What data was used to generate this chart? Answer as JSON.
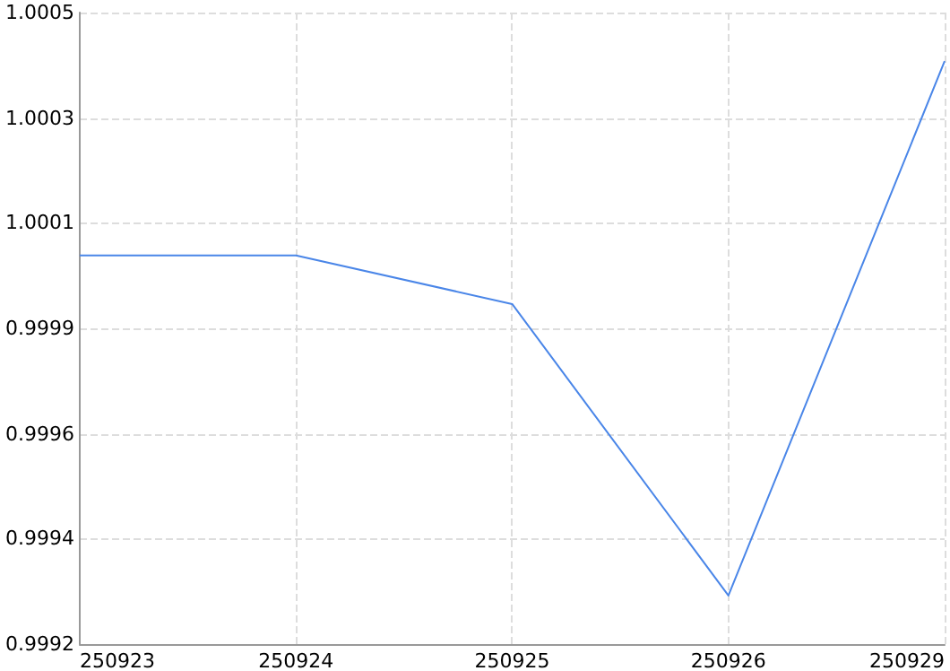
{
  "chart_data": {
    "type": "line",
    "categories": [
      "250923",
      "250924",
      "250925",
      "250926",
      "250929"
    ],
    "series": [
      {
        "color": "#4a86e8",
        "values": [
          1.0,
          1.0,
          0.9999,
          0.9993,
          1.0004
        ]
      }
    ],
    "ylim": [
      0.9992,
      1.0005
    ],
    "yticks": [
      {
        "value": 0.9992,
        "label": "0.9992"
      },
      {
        "value": 0.999417,
        "label": "0.9994"
      },
      {
        "value": 0.999633,
        "label": "0.9996"
      },
      {
        "value": 0.99985,
        "label": "0.9999"
      },
      {
        "value": 1.000067,
        "label": "1.0001"
      },
      {
        "value": 1.000283,
        "label": "1.0003"
      },
      {
        "value": 1.0005,
        "label": "1.0005"
      }
    ],
    "grid": true,
    "marker": "none"
  }
}
